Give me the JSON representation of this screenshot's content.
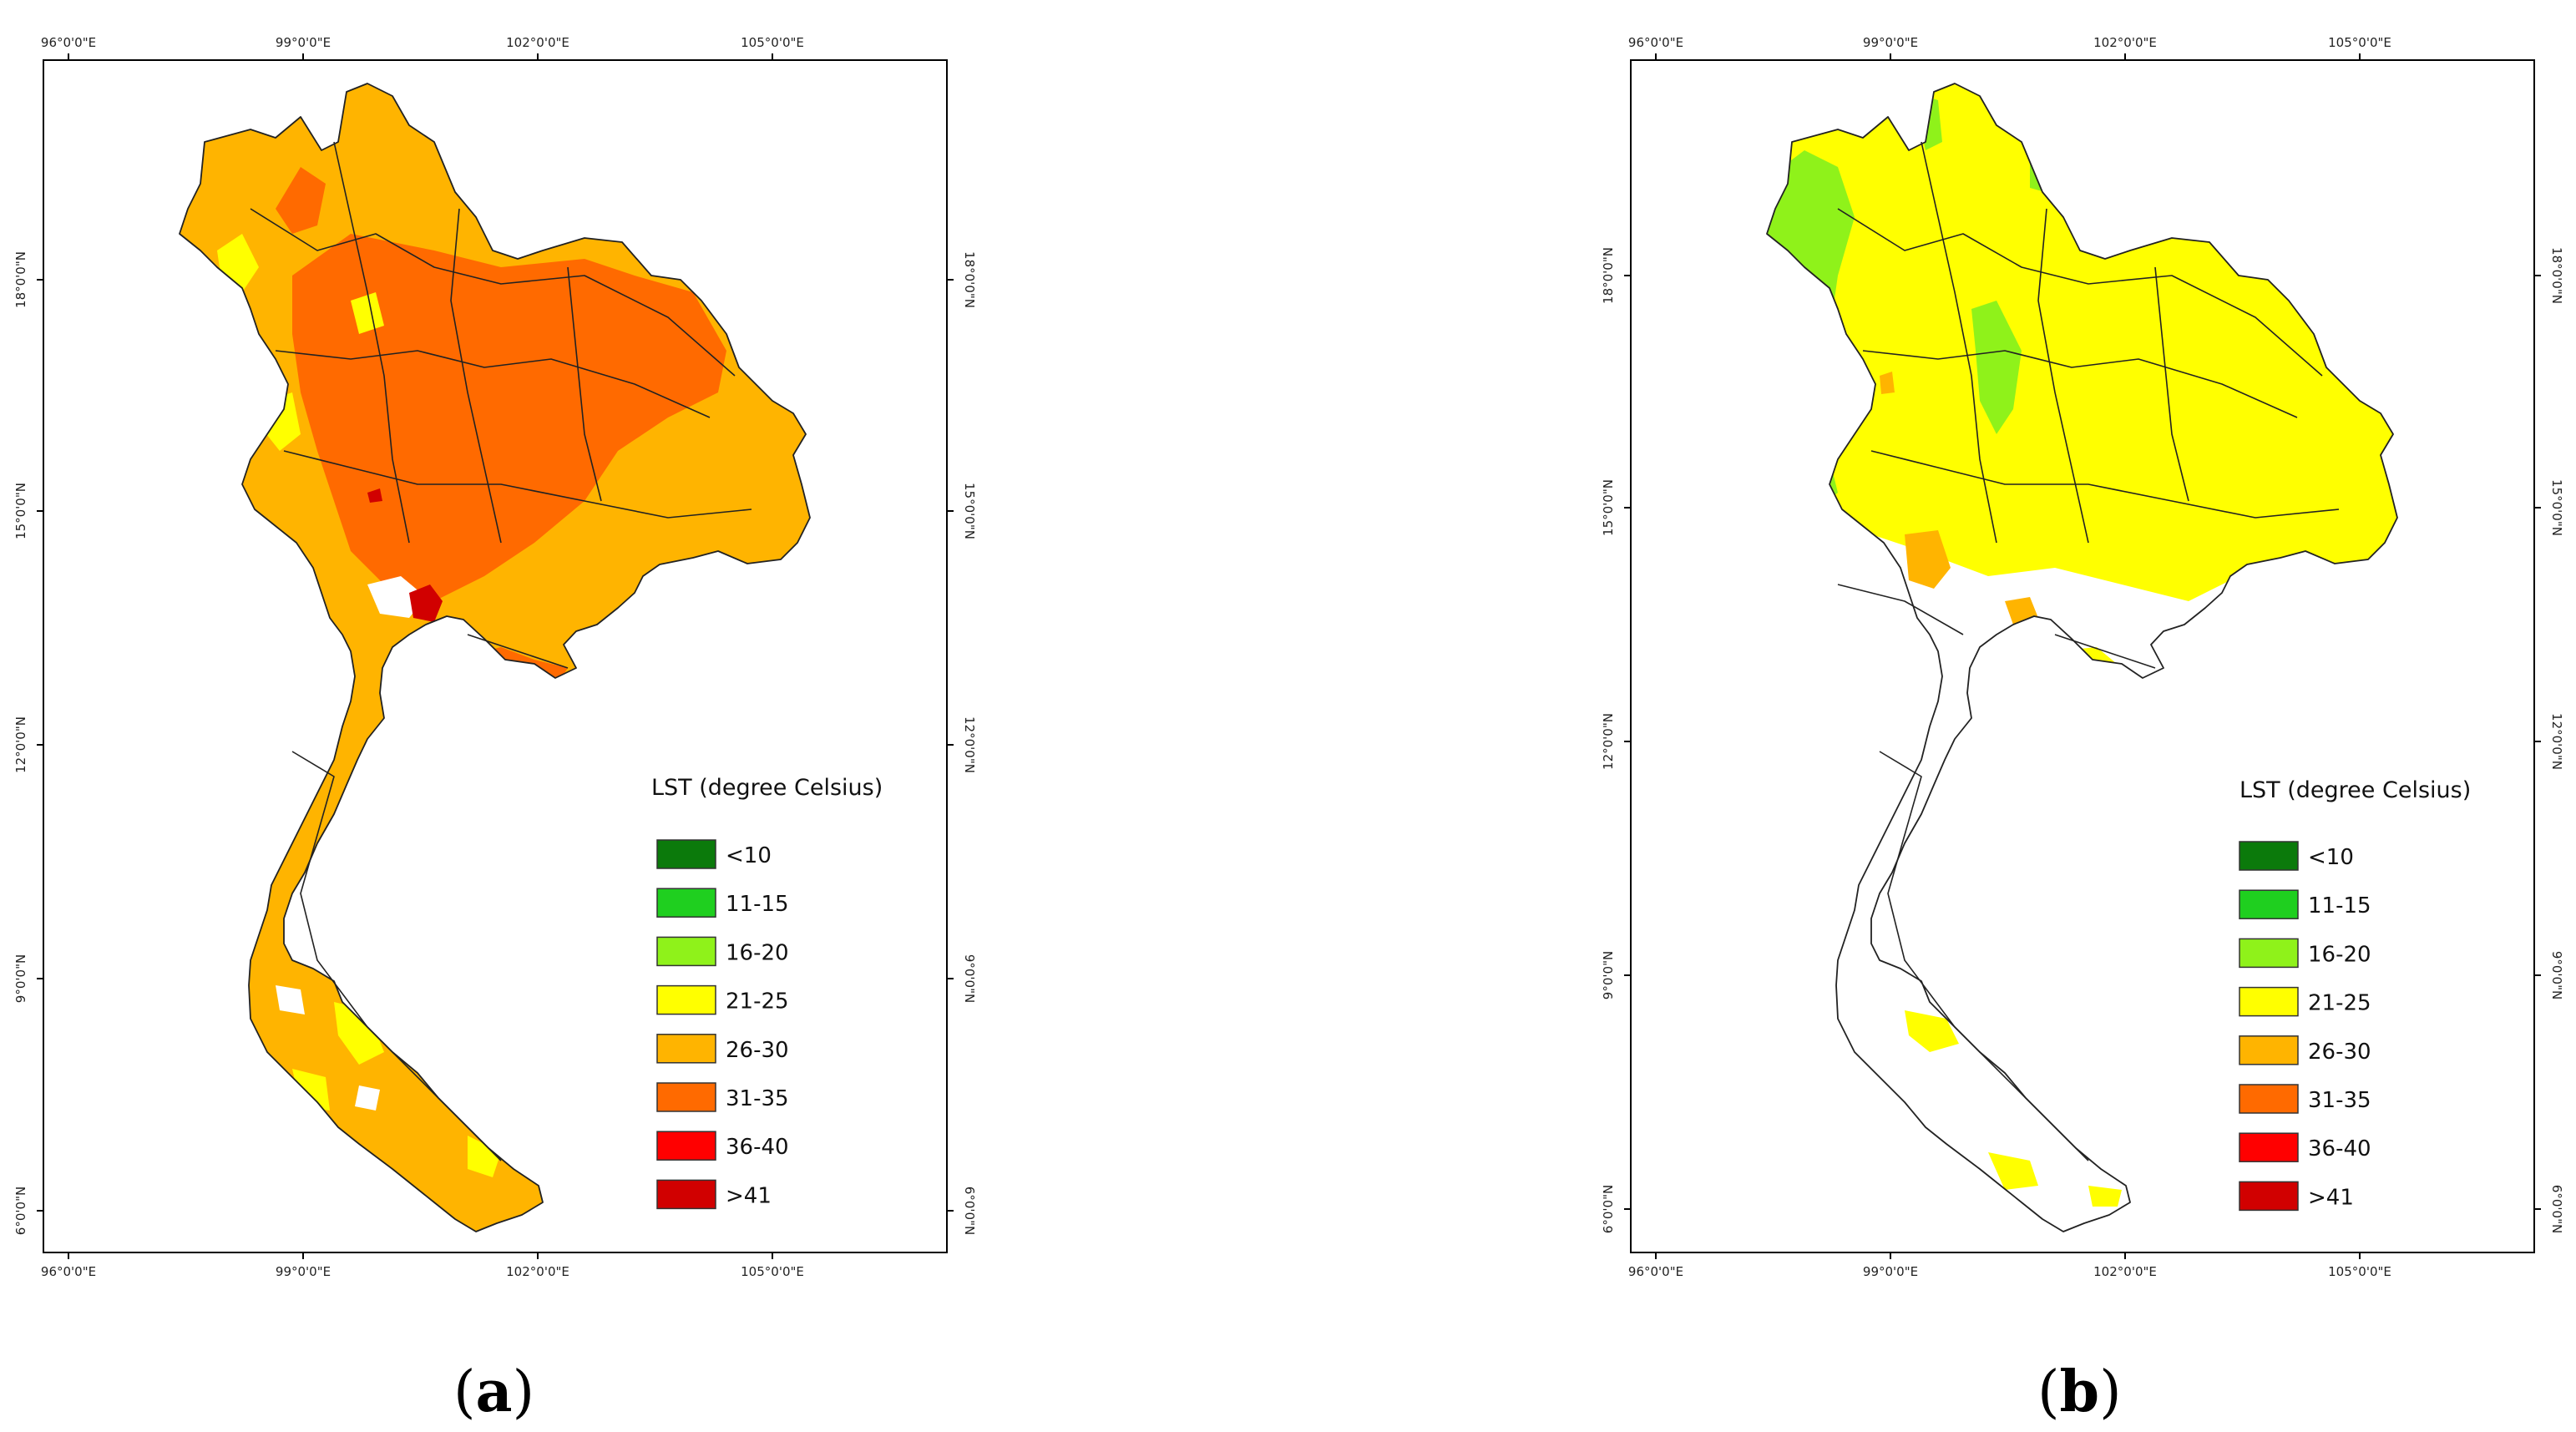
{
  "figure": {
    "panels": [
      {
        "id": "a",
        "caption_open": "(",
        "caption_letter": "a",
        "caption_close": ")",
        "map": {
          "lon_ticks": [
            "96°0'0\"E",
            "99°0'0\"E",
            "102°0'0\"E",
            "105°0'0\"E"
          ],
          "lat_ticks": [
            "18°0'0\"N",
            "15°0'0\"N",
            "12°0'0\"N",
            "9°0'0\"N",
            "6°0'0\"N"
          ],
          "dominant_classes": [
            "26-30",
            "31-35"
          ],
          "hotspot_class": ">41"
        },
        "legend": {
          "title": "LST (degree Celsius)",
          "items": [
            {
              "label": "<10",
              "color": "#0b7a0b"
            },
            {
              "label": "11-15",
              "color": "#1fcf1f"
            },
            {
              "label": "16-20",
              "color": "#8ff21a"
            },
            {
              "label": "21-25",
              "color": "#ffff00"
            },
            {
              "label": "26-30",
              "color": "#ffb400"
            },
            {
              "label": "31-35",
              "color": "#ff6a00"
            },
            {
              "label": "36-40",
              "color": "#ff0000"
            },
            {
              "label": ">41",
              "color": "#d10000"
            }
          ]
        }
      },
      {
        "id": "b",
        "caption_open": "(",
        "caption_letter": "b",
        "caption_close": ")",
        "map": {
          "lon_ticks": [
            "96°0'0\"E",
            "99°0'0\"E",
            "102°0'0\"E",
            "105°0'0\"E"
          ],
          "lat_ticks": [
            "18°0'0\"N",
            "15°0'0\"N",
            "12°0'0\"N",
            "9°0'0\"N",
            "6°0'0\"N"
          ],
          "dominant_classes": [
            "21-25",
            "16-20"
          ],
          "hotspot_class": "26-30"
        },
        "legend": {
          "title": "LST (degree Celsius)",
          "items": [
            {
              "label": "<10",
              "color": "#0b7a0b"
            },
            {
              "label": "11-15",
              "color": "#1fcf1f"
            },
            {
              "label": "16-20",
              "color": "#8ff21a"
            },
            {
              "label": "21-25",
              "color": "#ffff00"
            },
            {
              "label": "26-30",
              "color": "#ffb400"
            },
            {
              "label": "31-35",
              "color": "#ff6a00"
            },
            {
              "label": "36-40",
              "color": "#ff0000"
            },
            {
              "label": ">41",
              "color": "#d10000"
            }
          ]
        }
      }
    ]
  }
}
